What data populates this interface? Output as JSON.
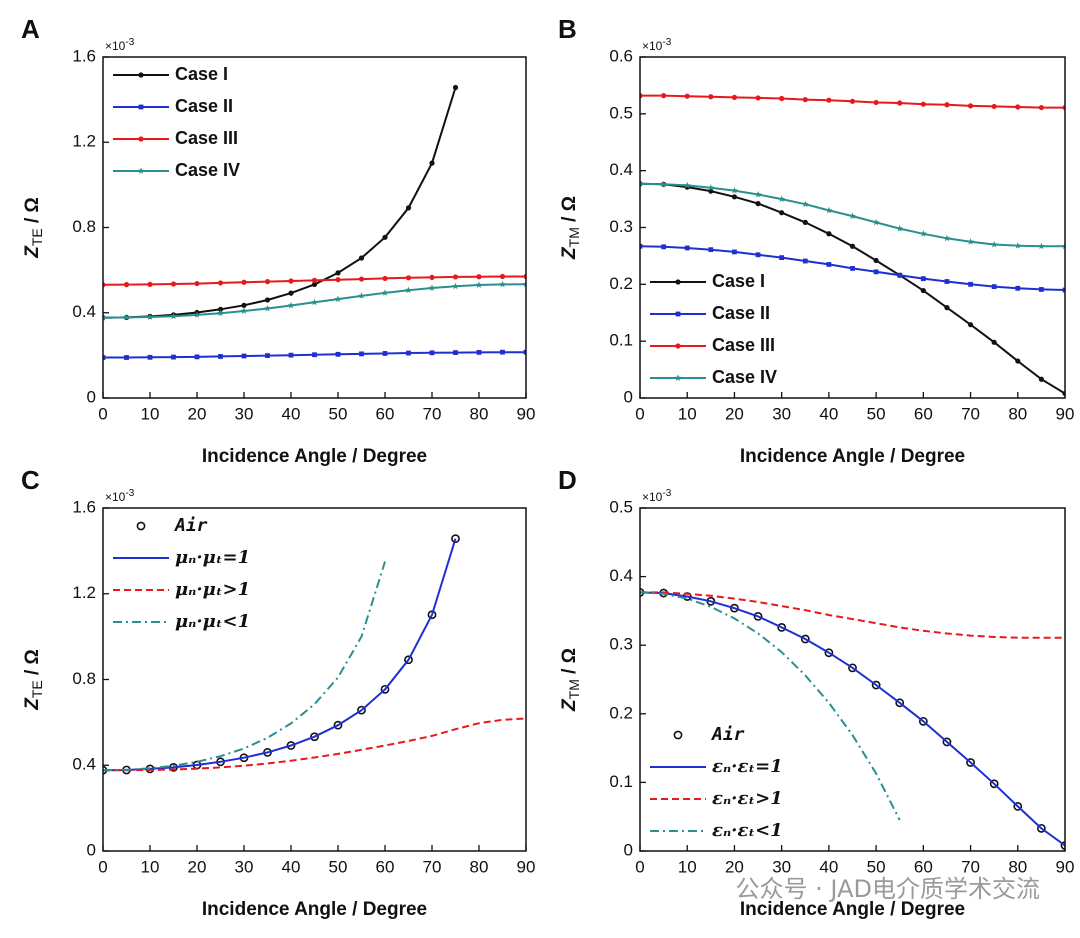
{
  "chart_data": [
    {
      "type": "line",
      "panel_label": "A",
      "xlabel": "Incidence Angle / Degree",
      "ylabel": {
        "main": "Z",
        "sub": "TE",
        "suffix": " / Ω"
      },
      "y_multiplier": {
        "base": "×10",
        "exponent": "-3"
      },
      "xlim": [
        0,
        90
      ],
      "xticks": [
        0,
        10,
        20,
        30,
        40,
        50,
        60,
        70,
        80,
        90
      ],
      "ylim": [
        0,
        1.6
      ],
      "yticks": [
        0.0,
        0.4,
        0.8,
        1.2,
        1.6
      ],
      "legend": "upper left",
      "x": [
        0,
        5,
        10,
        15,
        20,
        25,
        30,
        35,
        40,
        45,
        50,
        55,
        60,
        65,
        70,
        75,
        80,
        85,
        90
      ],
      "series": [
        {
          "name": "Case I",
          "color": "#111111",
          "line_style": "solid",
          "marker": "circle",
          "values": [
            0.377,
            0.378,
            0.383,
            0.39,
            0.401,
            0.416,
            0.435,
            0.46,
            0.492,
            0.533,
            0.587,
            0.657,
            0.754,
            0.892,
            1.102,
            1.457,
            null,
            null,
            null
          ]
        },
        {
          "name": "Case II",
          "color": "#1f2fd0",
          "line_style": "solid",
          "marker": "square",
          "values": [
            0.19,
            0.19,
            0.191,
            0.192,
            0.193,
            0.195,
            0.197,
            0.199,
            0.201,
            0.203,
            0.205,
            0.207,
            0.209,
            0.211,
            0.212,
            0.213,
            0.214,
            0.215,
            0.215
          ]
        },
        {
          "name": "Case III",
          "color": "#e8191c",
          "line_style": "solid",
          "marker": "circle",
          "values": [
            0.531,
            0.532,
            0.533,
            0.535,
            0.537,
            0.54,
            0.543,
            0.546,
            0.549,
            0.552,
            0.555,
            0.558,
            0.561,
            0.564,
            0.566,
            0.568,
            0.569,
            0.57,
            0.57
          ]
        },
        {
          "name": "Case IV",
          "color": "#2a8f8f",
          "line_style": "solid",
          "marker": "star",
          "values": [
            0.377,
            0.378,
            0.38,
            0.384,
            0.39,
            0.398,
            0.408,
            0.42,
            0.434,
            0.449,
            0.464,
            0.479,
            0.493,
            0.506,
            0.516,
            0.524,
            0.53,
            0.533,
            0.534
          ]
        }
      ]
    },
    {
      "type": "line",
      "panel_label": "B",
      "xlabel": "Incidence Angle / Degree",
      "ylabel": {
        "main": "Z",
        "sub": "TM",
        "suffix": " / Ω"
      },
      "y_multiplier": {
        "base": "×10",
        "exponent": "-3"
      },
      "xlim": [
        0,
        90
      ],
      "xticks": [
        0,
        10,
        20,
        30,
        40,
        50,
        60,
        70,
        80,
        90
      ],
      "ylim": [
        0,
        0.6
      ],
      "yticks": [
        0.0,
        0.1,
        0.2,
        0.3,
        0.4,
        0.5,
        0.6
      ],
      "legend": "lower left",
      "x": [
        0,
        5,
        10,
        15,
        20,
        25,
        30,
        35,
        40,
        45,
        50,
        55,
        60,
        65,
        70,
        75,
        80,
        85,
        90
      ],
      "series": [
        {
          "name": "Case I",
          "color": "#111111",
          "line_style": "solid",
          "marker": "circle",
          "values": [
            0.377,
            0.376,
            0.371,
            0.364,
            0.354,
            0.342,
            0.326,
            0.309,
            0.289,
            0.267,
            0.242,
            0.216,
            0.189,
            0.159,
            0.129,
            0.098,
            0.065,
            0.033,
            0.008
          ]
        },
        {
          "name": "Case II",
          "color": "#1f2fd0",
          "line_style": "solid",
          "marker": "square",
          "values": [
            0.267,
            0.266,
            0.264,
            0.261,
            0.257,
            0.252,
            0.247,
            0.241,
            0.235,
            0.228,
            0.222,
            0.216,
            0.21,
            0.205,
            0.2,
            0.196,
            0.193,
            0.191,
            0.19
          ]
        },
        {
          "name": "Case III",
          "color": "#e8191c",
          "line_style": "solid",
          "marker": "circle",
          "values": [
            0.532,
            0.532,
            0.531,
            0.53,
            0.529,
            0.528,
            0.527,
            0.525,
            0.524,
            0.522,
            0.52,
            0.519,
            0.517,
            0.516,
            0.514,
            0.513,
            0.512,
            0.511,
            0.511
          ]
        },
        {
          "name": "Case IV",
          "color": "#2a8f8f",
          "line_style": "solid",
          "marker": "star",
          "values": [
            0.377,
            0.376,
            0.374,
            0.37,
            0.365,
            0.358,
            0.35,
            0.341,
            0.33,
            0.32,
            0.309,
            0.298,
            0.289,
            0.281,
            0.275,
            0.27,
            0.268,
            0.267,
            0.267
          ]
        }
      ]
    },
    {
      "type": "line",
      "panel_label": "C",
      "xlabel": "Incidence Angle / Degree",
      "ylabel": {
        "main": "Z",
        "sub": "TE",
        "suffix": " / Ω"
      },
      "y_multiplier": {
        "base": "×10",
        "exponent": "-3"
      },
      "xlim": [
        0,
        90
      ],
      "xticks": [
        0,
        10,
        20,
        30,
        40,
        50,
        60,
        70,
        80,
        90
      ],
      "ylim": [
        0,
        1.6
      ],
      "yticks": [
        0.0,
        0.4,
        0.8,
        1.2,
        1.6
      ],
      "legend": "upper left",
      "x": [
        0,
        5,
        10,
        15,
        20,
        25,
        30,
        35,
        40,
        45,
        50,
        55,
        60,
        65,
        70,
        75,
        80,
        85,
        90
      ],
      "series": [
        {
          "name": "Air",
          "color": "#111111",
          "line_style": "none",
          "marker": "open-circle",
          "values": [
            0.377,
            0.378,
            0.383,
            0.39,
            0.401,
            0.416,
            0.435,
            0.46,
            0.492,
            0.533,
            0.587,
            0.657,
            0.754,
            0.892,
            1.102,
            1.457,
            null,
            null,
            null
          ]
        },
        {
          "name": "μₙ·μₜ=1",
          "color": "#1f2fd0",
          "line_style": "solid",
          "marker": "none",
          "values": [
            0.377,
            0.378,
            0.383,
            0.39,
            0.401,
            0.416,
            0.435,
            0.46,
            0.492,
            0.533,
            0.587,
            0.657,
            0.754,
            0.892,
            1.102,
            1.457,
            null,
            null,
            null
          ]
        },
        {
          "name": "μₙ·μₜ>1",
          "color": "#e8191c",
          "line_style": "dashed",
          "marker": "none",
          "values": [
            0.377,
            0.377,
            0.378,
            0.38,
            0.384,
            0.39,
            0.398,
            0.408,
            0.421,
            0.436,
            0.453,
            0.472,
            0.492,
            0.513,
            0.537,
            0.568,
            0.596,
            0.612,
            0.618
          ]
        },
        {
          "name": "μₙ·μₜ<1",
          "color": "#2a8f8f",
          "line_style": "dashdot",
          "marker": "none",
          "values": [
            0.377,
            0.379,
            0.386,
            0.398,
            0.416,
            0.442,
            0.478,
            0.528,
            0.595,
            0.685,
            0.81,
            1.0,
            1.35,
            null,
            null,
            null,
            null,
            null,
            null
          ]
        }
      ]
    },
    {
      "type": "line",
      "panel_label": "D",
      "xlabel": "Incidence Angle / Degree",
      "ylabel": {
        "main": "Z",
        "sub": "TM",
        "suffix": " / Ω"
      },
      "y_multiplier": {
        "base": "×10",
        "exponent": "-3"
      },
      "xlim": [
        0,
        90
      ],
      "xticks": [
        0,
        10,
        20,
        30,
        40,
        50,
        60,
        70,
        80,
        90
      ],
      "ylim": [
        0,
        0.5
      ],
      "yticks": [
        0.0,
        0.1,
        0.2,
        0.3,
        0.4,
        0.5
      ],
      "legend": "lower left",
      "x": [
        0,
        5,
        10,
        15,
        20,
        25,
        30,
        35,
        40,
        45,
        50,
        55,
        60,
        65,
        70,
        75,
        80,
        85,
        90
      ],
      "series": [
        {
          "name": "Air",
          "color": "#111111",
          "line_style": "none",
          "marker": "open-circle",
          "values": [
            0.377,
            0.376,
            0.371,
            0.364,
            0.354,
            0.342,
            0.326,
            0.309,
            0.289,
            0.267,
            0.242,
            0.216,
            0.189,
            0.159,
            0.129,
            0.098,
            0.065,
            0.033,
            0.008
          ]
        },
        {
          "name": "εₙ·εₜ=1",
          "color": "#1f2fd0",
          "line_style": "solid",
          "marker": "none",
          "values": [
            0.377,
            0.376,
            0.371,
            0.364,
            0.354,
            0.342,
            0.326,
            0.309,
            0.289,
            0.267,
            0.242,
            0.216,
            0.189,
            0.159,
            0.129,
            0.098,
            0.065,
            0.033,
            0.008
          ]
        },
        {
          "name": "εₙ·εₜ>1",
          "color": "#e8191c",
          "line_style": "dashed",
          "marker": "none",
          "values": [
            0.377,
            0.377,
            0.375,
            0.372,
            0.368,
            0.363,
            0.357,
            0.351,
            0.344,
            0.338,
            0.332,
            0.326,
            0.321,
            0.317,
            0.314,
            0.312,
            0.311,
            0.311,
            0.311
          ]
        },
        {
          "name": "εₙ·εₜ<1",
          "color": "#2a8f8f",
          "line_style": "dashdot",
          "marker": "none",
          "values": [
            0.377,
            0.375,
            0.368,
            0.356,
            0.339,
            0.317,
            0.29,
            0.256,
            0.216,
            0.169,
            0.113,
            0.045,
            null,
            null,
            null,
            null,
            null,
            null,
            null
          ]
        }
      ]
    }
  ],
  "watermark": "公众号 · JAD电介质学术交流"
}
